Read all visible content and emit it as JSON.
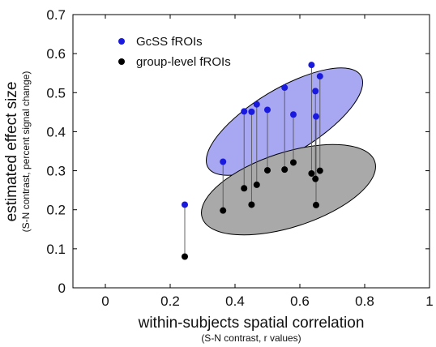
{
  "chart_data": {
    "type": "scatter",
    "xlabel": "within-subjects spatial correlation",
    "xlabel_sub": "(S-N contrast, r values)",
    "ylabel": "estimated effect size",
    "ylabel_sub": "(S-N contrast, percent signal change)",
    "xlim": [
      -0.1,
      1.0
    ],
    "ylim": [
      0,
      0.7
    ],
    "xticks": [
      0,
      0.2,
      0.4,
      0.6,
      0.8,
      1
    ],
    "xtick_labels": [
      "0",
      "0.2",
      "0.4",
      "0.6",
      "0.8",
      "1"
    ],
    "yticks": [
      0,
      0.1,
      0.2,
      0.3,
      0.4,
      0.5,
      0.6,
      0.7
    ],
    "ytick_labels": [
      "0",
      "0.1",
      "0.2",
      "0.3",
      "0.4",
      "0.5",
      "0.6",
      "0.7"
    ],
    "legend_position": "top-left",
    "connectors": true,
    "series": [
      {
        "name": "GcSS fROIs",
        "color": "#1a1adf",
        "ellipse_fill": "#a8a8f2",
        "x": [
          0.245,
          0.363,
          0.428,
          0.451,
          0.467,
          0.5,
          0.553,
          0.58,
          0.636,
          0.648,
          0.65,
          0.662
        ],
        "y": [
          0.213,
          0.323,
          0.452,
          0.451,
          0.47,
          0.456,
          0.513,
          0.444,
          0.571,
          0.504,
          0.439,
          0.542
        ]
      },
      {
        "name": "group-level fROIs",
        "color": "#000000",
        "ellipse_fill": "#a9a9a9",
        "x": [
          0.245,
          0.363,
          0.428,
          0.451,
          0.467,
          0.5,
          0.553,
          0.58,
          0.636,
          0.648,
          0.65,
          0.662
        ],
        "y": [
          0.08,
          0.198,
          0.255,
          0.213,
          0.264,
          0.301,
          0.303,
          0.321,
          0.293,
          0.279,
          0.212,
          0.3
        ]
      }
    ]
  }
}
